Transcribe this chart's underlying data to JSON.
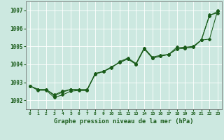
{
  "xlabel": "Graphe pression niveau de la mer (hPa)",
  "background_color": "#cce8e0",
  "grid_color": "#ffffff",
  "line_color": "#1a5c1a",
  "ylim": [
    1001.5,
    1007.5
  ],
  "xlim": [
    -0.5,
    23.5
  ],
  "yticks": [
    1002,
    1003,
    1004,
    1005,
    1006,
    1007
  ],
  "xticks": [
    0,
    1,
    2,
    3,
    4,
    5,
    6,
    7,
    8,
    9,
    10,
    11,
    12,
    13,
    14,
    15,
    16,
    17,
    18,
    19,
    20,
    21,
    22,
    23
  ],
  "series1": [
    1002.8,
    1002.6,
    1002.6,
    1002.3,
    1002.5,
    1002.6,
    1002.6,
    1002.6,
    1003.45,
    1003.6,
    1003.85,
    1004.1,
    1004.3,
    1004.0,
    1004.85,
    1004.35,
    1004.45,
    1004.55,
    1004.85,
    1004.9,
    1004.95,
    1005.35,
    1006.75,
    1006.85
  ],
  "series2": [
    1002.8,
    1002.55,
    1002.55,
    1002.15,
    1002.3,
    1002.5,
    1002.55,
    1002.55,
    1003.5,
    1003.6,
    1003.85,
    1004.1,
    1004.3,
    1004.0,
    1004.9,
    1004.35,
    1004.45,
    1004.55,
    1004.85,
    1004.9,
    1004.95,
    1005.35,
    1005.4,
    1007.0
  ],
  "series3": [
    1002.8,
    1002.6,
    1002.6,
    1002.25,
    1002.45,
    1002.6,
    1002.55,
    1002.55,
    1003.45,
    1003.6,
    1003.8,
    1004.15,
    1004.35,
    1004.05,
    1004.9,
    1004.4,
    1004.5,
    1004.55,
    1004.95,
    1004.95,
    1005.0,
    1005.35,
    1006.7,
    1006.95
  ]
}
